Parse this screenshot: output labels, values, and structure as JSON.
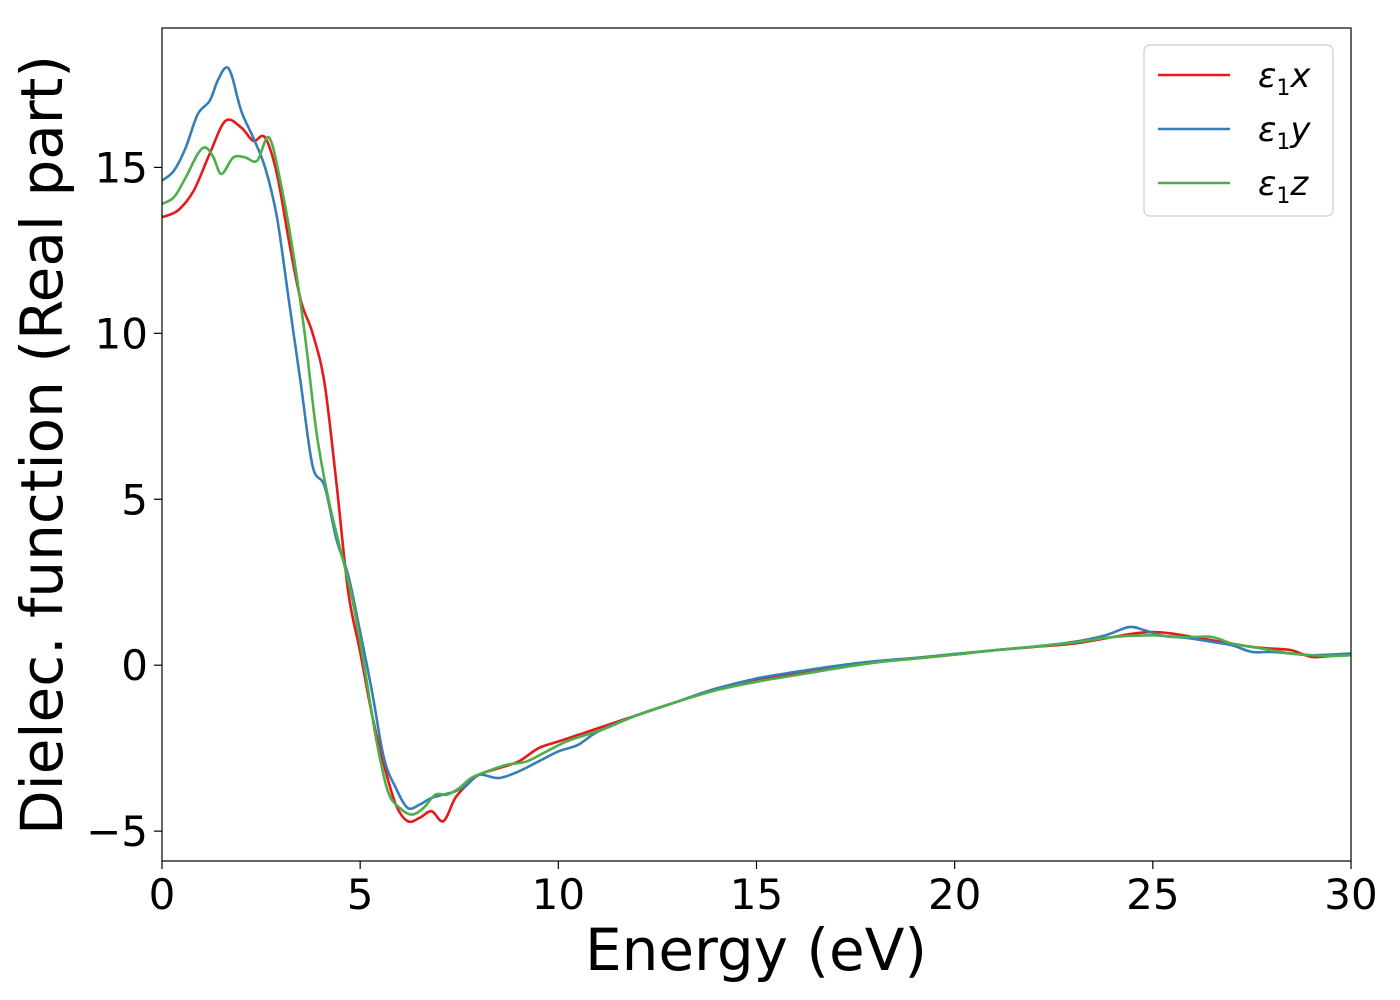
{
  "chart_data": {
    "type": "line",
    "title": "",
    "xlabel": "Energy (eV)",
    "ylabel": "Dielec. function (Real part)",
    "xlim": [
      0,
      30
    ],
    "ylim": [
      -5.9,
      19.2
    ],
    "xticks": [
      0,
      5,
      10,
      15,
      20,
      25,
      30
    ],
    "xtick_labels": [
      "0",
      "5",
      "10",
      "15",
      "20",
      "25",
      "30"
    ],
    "yticks": [
      -5,
      0,
      5,
      10,
      15
    ],
    "ytick_labels": [
      "−5",
      "0",
      "5",
      "10",
      "15"
    ],
    "grid": false,
    "legend_position": "top-right",
    "series": [
      {
        "name": "ε₁x",
        "legend_base": "ε",
        "legend_sub": "1",
        "legend_var": "x",
        "color": "#e41a1c",
        "x": [
          0,
          0.4,
          0.8,
          1.2,
          1.6,
          2.0,
          2.3,
          2.6,
          2.9,
          3.2,
          3.5,
          3.8,
          4.1,
          4.4,
          4.7,
          5.0,
          5.3,
          5.6,
          5.9,
          6.2,
          6.5,
          6.8,
          7.1,
          7.4,
          7.7,
          8.0,
          8.5,
          9.0,
          9.5,
          10.0,
          10.5,
          11.0,
          12.0,
          13.0,
          14.0,
          15.0,
          16.0,
          17.0,
          18.0,
          19.0,
          20.0,
          21.0,
          22.0,
          23.0,
          24.0,
          24.5,
          25.0,
          25.5,
          26.0,
          26.5,
          27.0,
          27.5,
          28.0,
          28.5,
          29.0,
          29.5,
          30.0
        ],
        "y": [
          13.5,
          13.7,
          14.3,
          15.4,
          16.4,
          16.2,
          15.8,
          15.9,
          14.8,
          12.8,
          11.0,
          10.0,
          8.5,
          5.5,
          2.2,
          0.4,
          -1.5,
          -3.0,
          -4.2,
          -4.7,
          -4.6,
          -4.4,
          -4.7,
          -4.0,
          -3.6,
          -3.3,
          -3.1,
          -2.9,
          -2.5,
          -2.3,
          -2.1,
          -1.9,
          -1.5,
          -1.1,
          -0.7,
          -0.45,
          -0.25,
          -0.05,
          0.1,
          0.2,
          0.32,
          0.45,
          0.55,
          0.65,
          0.85,
          0.95,
          1.0,
          0.95,
          0.85,
          0.75,
          0.65,
          0.55,
          0.5,
          0.45,
          0.25,
          0.28,
          0.32
        ]
      },
      {
        "name": "ε₁y",
        "legend_base": "ε",
        "legend_sub": "1",
        "legend_var": "y",
        "color": "#377eb8",
        "x": [
          0,
          0.3,
          0.6,
          0.9,
          1.2,
          1.4,
          1.6,
          1.75,
          2.0,
          2.3,
          2.6,
          2.9,
          3.2,
          3.5,
          3.8,
          4.1,
          4.4,
          4.7,
          5.0,
          5.3,
          5.6,
          5.9,
          6.2,
          6.5,
          6.8,
          7.1,
          7.4,
          7.7,
          8.0,
          8.5,
          9.0,
          9.5,
          10.0,
          10.5,
          11.0,
          12.0,
          13.0,
          14.0,
          15.0,
          16.0,
          17.0,
          18.0,
          19.0,
          20.0,
          21.0,
          22.0,
          23.0,
          23.8,
          24.4,
          24.8,
          25.2,
          25.6,
          26.0,
          26.5,
          27.0,
          27.5,
          28.0,
          28.5,
          29.0,
          29.5,
          30.0
        ],
        "y": [
          14.6,
          14.9,
          15.6,
          16.6,
          17.0,
          17.6,
          18.0,
          17.8,
          16.7,
          15.9,
          15.0,
          13.5,
          11.0,
          8.5,
          6.0,
          5.4,
          3.8,
          2.7,
          1.0,
          -0.8,
          -2.8,
          -3.7,
          -4.3,
          -4.2,
          -4.0,
          -3.9,
          -3.8,
          -3.6,
          -3.3,
          -3.4,
          -3.2,
          -2.9,
          -2.6,
          -2.4,
          -2.0,
          -1.5,
          -1.1,
          -0.7,
          -0.4,
          -0.2,
          -0.02,
          0.12,
          0.22,
          0.34,
          0.45,
          0.56,
          0.7,
          0.9,
          1.15,
          1.05,
          0.9,
          0.85,
          0.8,
          0.7,
          0.6,
          0.4,
          0.4,
          0.35,
          0.3,
          0.32,
          0.35
        ]
      },
      {
        "name": "ε₁z",
        "legend_base": "ε",
        "legend_sub": "1",
        "legend_var": "z",
        "color": "#4daf4a",
        "x": [
          0,
          0.3,
          0.6,
          0.9,
          1.1,
          1.3,
          1.5,
          1.8,
          2.1,
          2.4,
          2.7,
          3.0,
          3.3,
          3.6,
          3.9,
          4.2,
          4.5,
          4.8,
          5.1,
          5.4,
          5.7,
          6.0,
          6.3,
          6.6,
          6.9,
          7.2,
          7.5,
          7.8,
          8.2,
          8.7,
          9.2,
          9.7,
          10.2,
          10.7,
          11.2,
          12.0,
          13.0,
          14.0,
          15.0,
          16.0,
          17.0,
          18.0,
          19.0,
          20.0,
          21.0,
          22.0,
          23.0,
          24.0,
          25.0,
          25.5,
          26.0,
          26.5,
          27.0,
          27.5,
          28.0,
          28.5,
          29.0,
          29.5,
          30.0
        ],
        "y": [
          13.9,
          14.1,
          14.7,
          15.4,
          15.6,
          15.3,
          14.8,
          15.3,
          15.3,
          15.2,
          15.9,
          14.5,
          12.5,
          10.0,
          7.0,
          5.0,
          3.5,
          2.0,
          0.0,
          -2.2,
          -3.8,
          -4.3,
          -4.5,
          -4.3,
          -3.9,
          -3.9,
          -3.7,
          -3.4,
          -3.2,
          -3.0,
          -2.9,
          -2.6,
          -2.3,
          -2.1,
          -1.9,
          -1.5,
          -1.1,
          -0.75,
          -0.5,
          -0.3,
          -0.1,
          0.08,
          0.2,
          0.32,
          0.45,
          0.56,
          0.68,
          0.85,
          0.9,
          0.85,
          0.85,
          0.85,
          0.65,
          0.55,
          0.45,
          0.35,
          0.3,
          0.28,
          0.3
        ]
      }
    ]
  }
}
